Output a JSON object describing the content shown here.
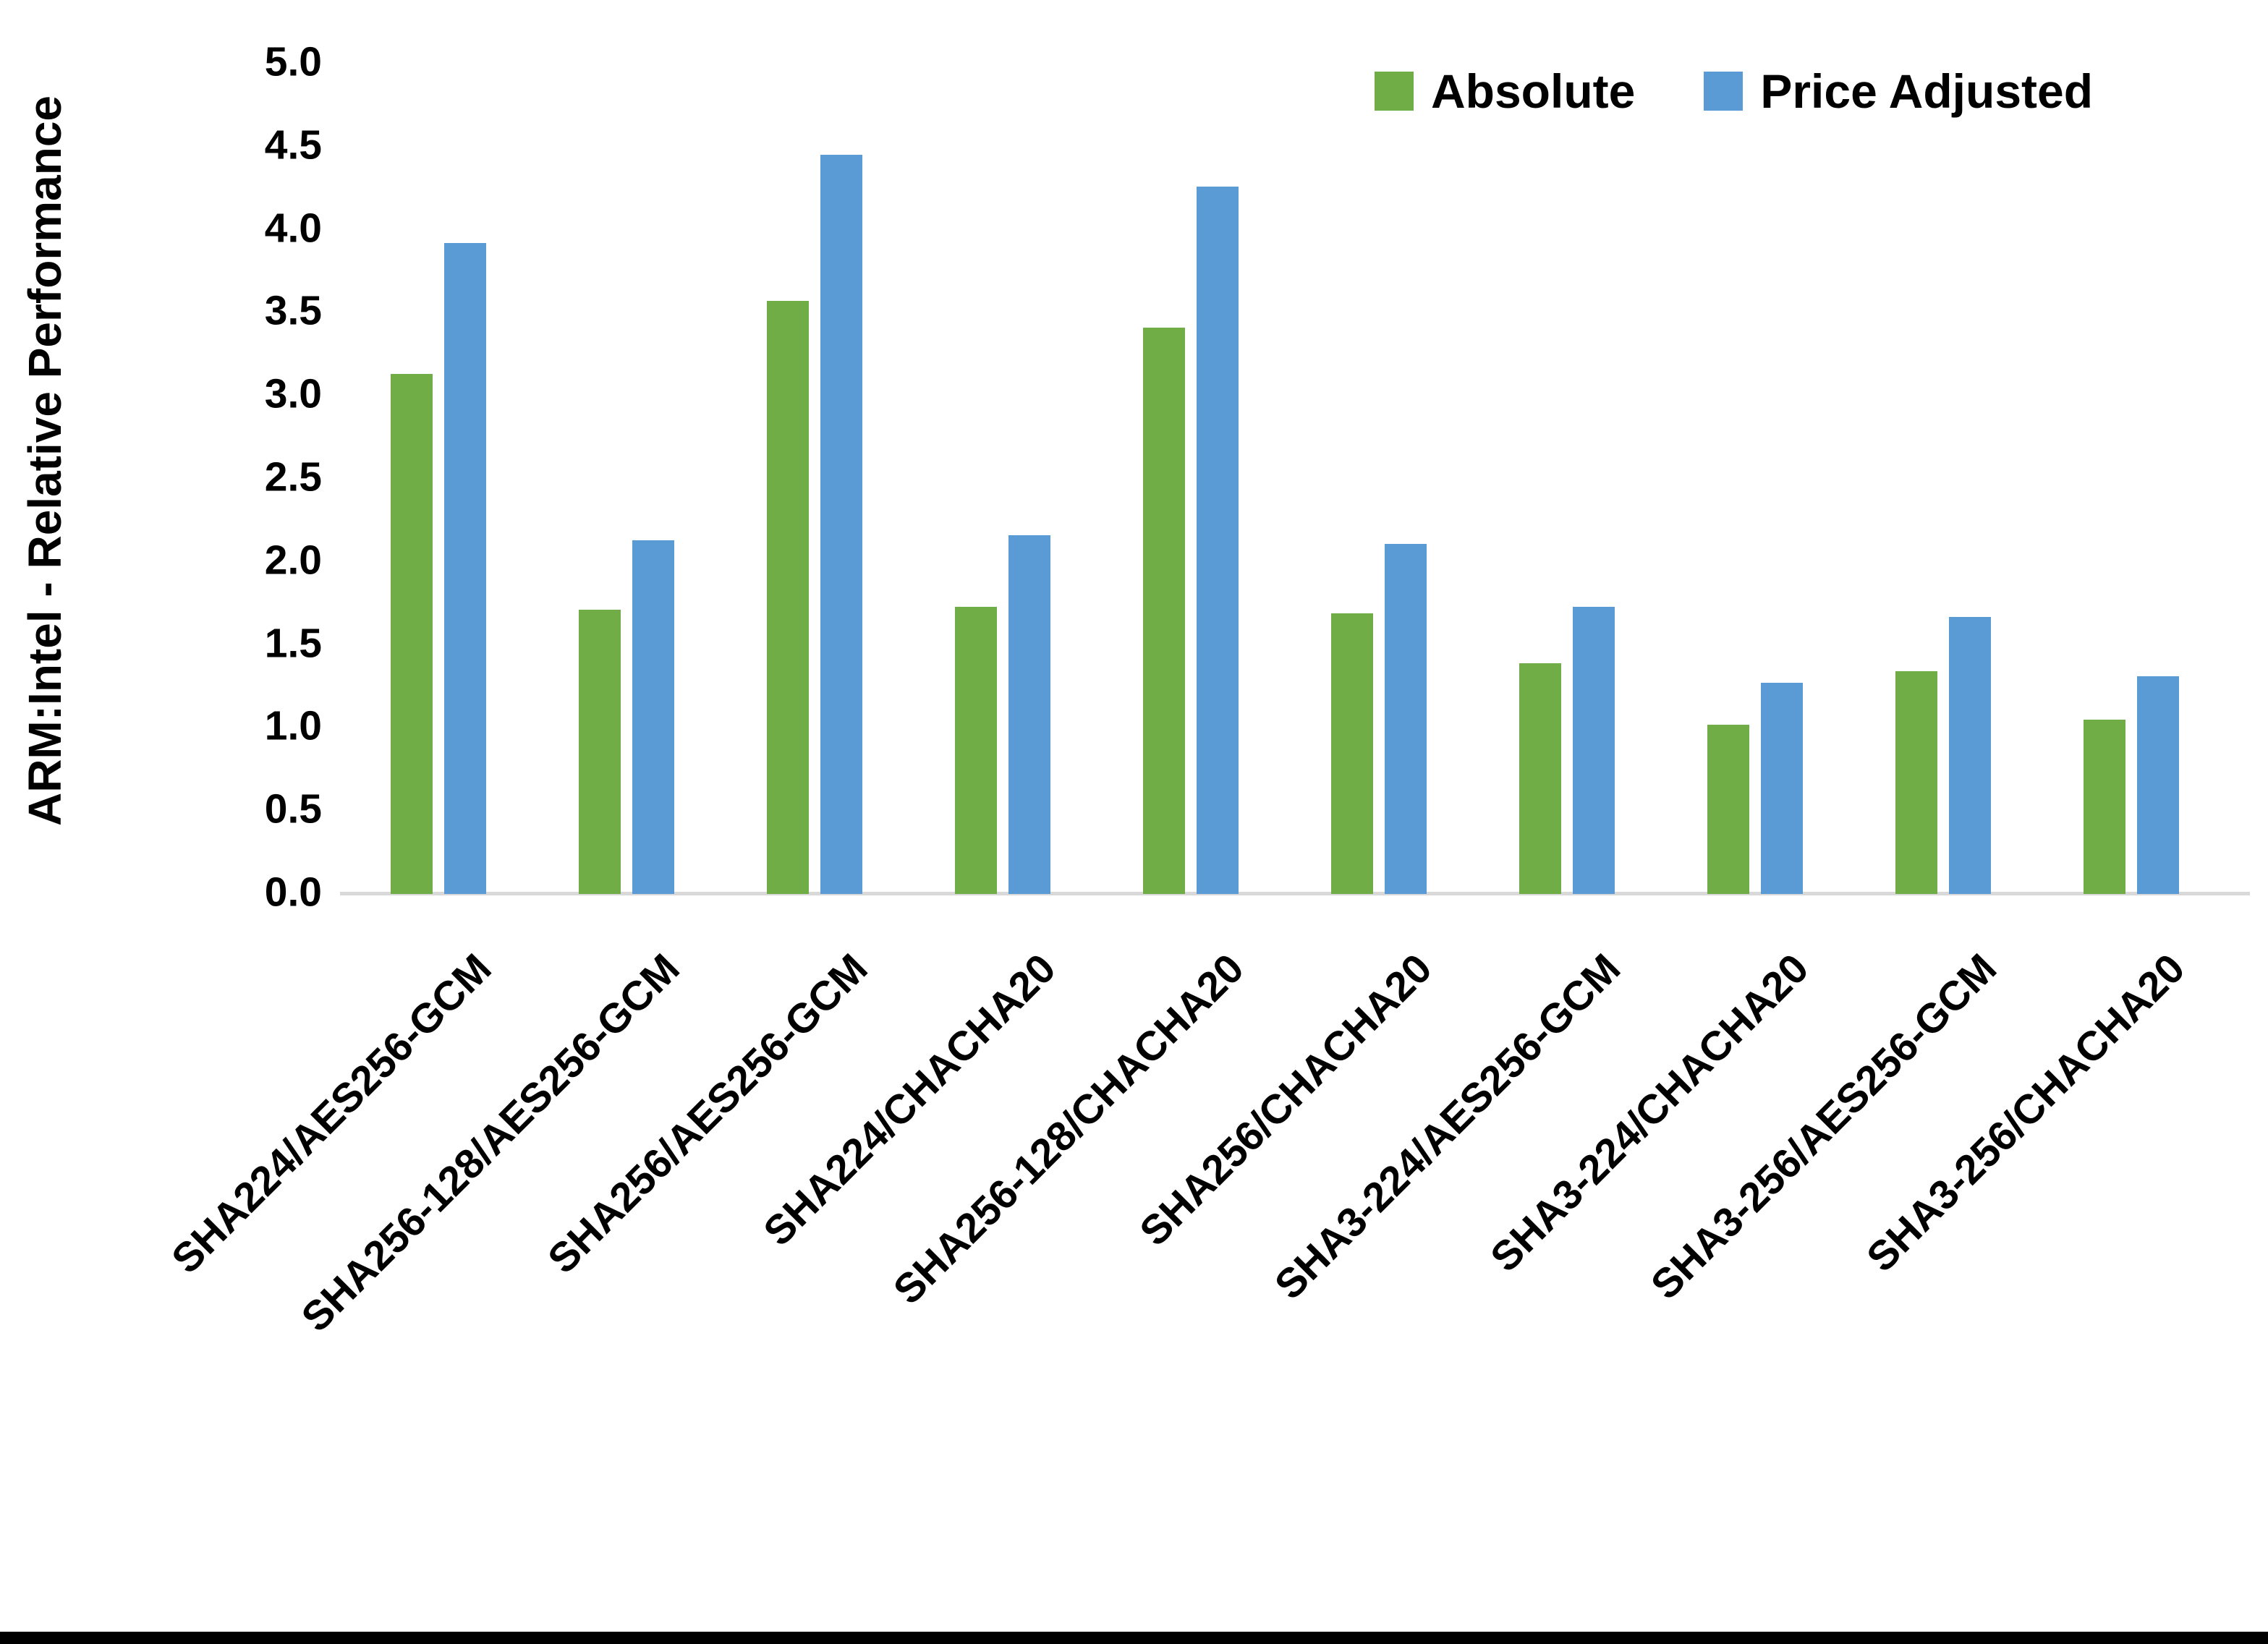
{
  "chart_data": {
    "type": "bar",
    "title": "",
    "xlabel": "",
    "ylabel": "ARM:Intel - Relative Performance",
    "ylim": [
      0.0,
      5.0
    ],
    "ytick_step": 0.5,
    "yticks": [
      "0.0",
      "0.5",
      "1.0",
      "1.5",
      "2.0",
      "2.5",
      "3.0",
      "3.5",
      "4.0",
      "4.5",
      "5.0"
    ],
    "grid": false,
    "legend_position": "top-right",
    "categories": [
      "SHA224/AES256-GCM",
      "SHA256-128/AES256-GCM",
      "SHA256/AES256-GCM",
      "SHA224/CHACHA20",
      "SHA256-128/CHACHA20",
      "SHA256/CHACHA20",
      "SHA3-224/AES256-GCM",
      "SHA3-224/CHACHA20",
      "SHA3-256/AES256-GCM",
      "SHA3-256/CHACHA20"
    ],
    "series": [
      {
        "name": "Absolute",
        "color": "#70AD47",
        "values": [
          3.13,
          1.71,
          3.57,
          1.73,
          3.41,
          1.69,
          1.39,
          1.02,
          1.34,
          1.05
        ]
      },
      {
        "name": "Price Adjusted",
        "color": "#5B9BD5",
        "values": [
          3.92,
          2.13,
          4.45,
          2.16,
          4.26,
          2.11,
          1.73,
          1.27,
          1.67,
          1.31
        ]
      }
    ]
  }
}
